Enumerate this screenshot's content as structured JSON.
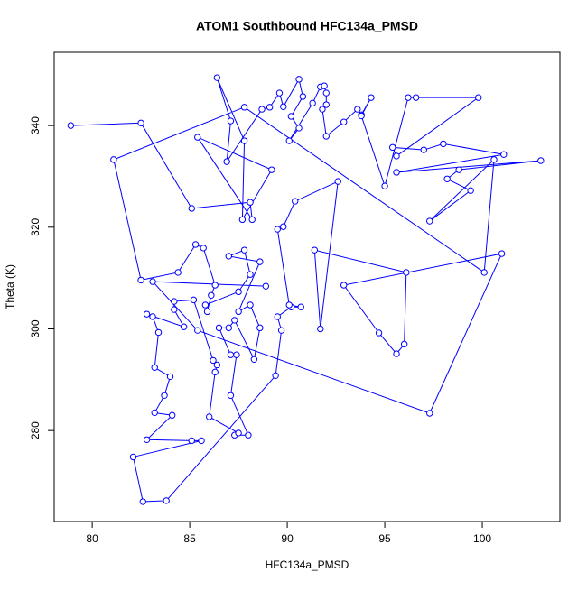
{
  "chart_data": {
    "type": "line",
    "title": "ATOM1 Southbound HFC134a_PMSD",
    "x_label": "HFC134a_PMSD",
    "y_label": "Theta (K)",
    "color": "#0000ff",
    "markers": true,
    "grid": false,
    "xlim": [
      78.05,
      103.98
    ],
    "ylim": [
      262.1,
      354.4
    ],
    "xticks": [
      80,
      85,
      90,
      95,
      100
    ],
    "yticks": [
      280,
      300,
      320,
      340
    ],
    "x": [
      78.9,
      82.5,
      85.1,
      88.1,
      88.2,
      85.4,
      89.2,
      87.7,
      87.8,
      86.4,
      87.1,
      86.9,
      88.7,
      89.1,
      89.6,
      89.8,
      90.6,
      90.8,
      90.2,
      90.6,
      90.1,
      91.3,
      91.7,
      91.9,
      92.0,
      92.0,
      91.8,
      92.0,
      92.9,
      93.6,
      93.8,
      94.3,
      93.8,
      95.0,
      96.2,
      96.6,
      99.8,
      95.6,
      95.4,
      97.0,
      98.0,
      101.1,
      95.6,
      103.0,
      98.8,
      98.2,
      99.4,
      97.3,
      100.6,
      100.1,
      87.8,
      81.1,
      82.5,
      84.4,
      85.3,
      85.7,
      86.3,
      86.1,
      85.9,
      85.8,
      87.5,
      88.1,
      87.8,
      87.0,
      88.6,
      87.5,
      88.1,
      88.6,
      88.3,
      87.3,
      87.0,
      86.5,
      87.1,
      87.4,
      87.1,
      88.0,
      87.3,
      87.5,
      86.0,
      86.3,
      86.4,
      86.2,
      85.2,
      84.2,
      84.2,
      84.7,
      82.8,
      83.1,
      83.4,
      83.2,
      84.0,
      83.7,
      83.2,
      84.1,
      82.8,
      85.1,
      85.6,
      82.1,
      82.6,
      83.8,
      89.4,
      89.7,
      89.5,
      90.2,
      90.7,
      90.1,
      89.5,
      89.8,
      90.4,
      92.6,
      91.7,
      91.4,
      96.1,
      96.0,
      95.6,
      94.7,
      92.9,
      101.0,
      97.3,
      85.4,
      83.1,
      88.9
    ],
    "values": [
      340.0,
      340.5,
      323.7,
      324.9,
      321.5,
      337.7,
      331.3,
      321.5,
      337.0,
      349.4,
      340.9,
      332.9,
      343.2,
      343.6,
      346.4,
      343.7,
      349.1,
      345.7,
      341.8,
      339.5,
      337.0,
      344.4,
      347.6,
      347.8,
      346.4,
      344.1,
      343.2,
      337.9,
      340.7,
      343.2,
      342.1,
      345.5,
      341.9,
      328.1,
      345.5,
      345.5,
      345.5,
      334.0,
      335.7,
      335.2,
      336.4,
      334.3,
      330.8,
      333.1,
      331.3,
      329.5,
      327.2,
      321.2,
      333.3,
      311.1,
      343.6,
      333.3,
      309.6,
      311.1,
      316.6,
      315.9,
      308.6,
      306.6,
      303.4,
      304.7,
      307.3,
      310.7,
      315.5,
      314.3,
      313.2,
      303.4,
      304.7,
      300.2,
      294.0,
      301.7,
      300.2,
      300.2,
      294.9,
      294.9,
      286.9,
      279.1,
      279.1,
      279.5,
      282.7,
      291.5,
      292.9,
      293.8,
      305.7,
      305.4,
      303.8,
      300.4,
      302.9,
      302.4,
      299.3,
      292.4,
      290.6,
      286.9,
      283.5,
      283.0,
      278.2,
      278.0,
      278.0,
      274.8,
      266.0,
      266.2,
      290.8,
      299.7,
      302.4,
      304.3,
      304.3,
      304.7,
      319.6,
      320.1,
      325.1,
      329.0,
      300.0,
      315.5,
      311.1,
      297.0,
      295.1,
      299.2,
      308.6,
      314.8,
      283.4,
      299.7,
      309.3,
      308.4
    ]
  }
}
